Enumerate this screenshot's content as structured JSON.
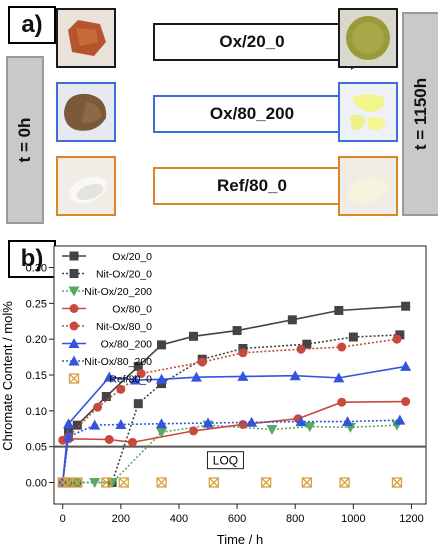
{
  "panel_a": {
    "label": "a)",
    "start_label": "t = 0h",
    "end_label": "t = 1150h",
    "rows": [
      {
        "condition": "Ox/20_0",
        "border": "#1a1a1a"
      },
      {
        "condition": "Ox/80_200",
        "border": "#3a6fd8"
      },
      {
        "condition": "Ref/80_0",
        "border": "#d8862a"
      }
    ]
  },
  "panel_b_label": "b)",
  "chart_data": {
    "type": "line",
    "xlabel": "Time / h",
    "ylabel": "Chromate Content / mol%",
    "xlim": [
      -30,
      1250
    ],
    "ylim": [
      -0.03,
      0.33
    ],
    "xticks": [
      0,
      200,
      400,
      600,
      800,
      1000,
      1200
    ],
    "yticks": [
      0.0,
      0.05,
      0.1,
      0.15,
      0.2,
      0.25,
      0.3
    ],
    "loq": {
      "value": 0.05,
      "label": "LOQ"
    },
    "grid": false,
    "legend": "top-left",
    "series": [
      {
        "name": "Ox/20_0",
        "color": "#444444",
        "marker": "square",
        "dash": "solid",
        "x": [
          0,
          20,
          50,
          150,
          260,
          340,
          450,
          600,
          790,
          950,
          1180
        ],
        "y": [
          0.0,
          0.07,
          0.08,
          0.12,
          0.162,
          0.192,
          0.204,
          0.212,
          0.227,
          0.24,
          0.246
        ]
      },
      {
        "name": "Nit-Ox/20_0",
        "color": "#444444",
        "marker": "square",
        "dash": "dotted",
        "x": [
          0,
          20,
          50,
          170,
          260,
          340,
          480,
          620,
          840,
          1000,
          1160
        ],
        "y": [
          0.0,
          0.0,
          0.0,
          0.0,
          0.11,
          0.138,
          0.172,
          0.187,
          0.193,
          0.203,
          0.206
        ]
      },
      {
        "name": "Nit-Ox/20_200",
        "color": "#55aa66",
        "marker": "triangle-down",
        "dash": "dotted",
        "x": [
          0,
          20,
          50,
          110,
          170,
          340,
          500,
          720,
          850,
          990,
          1150
        ],
        "y": [
          0.0,
          0.0,
          0.0,
          0.0,
          0.0,
          0.07,
          0.08,
          0.074,
          0.078,
          0.077,
          0.08
        ]
      },
      {
        "name": "Ox/80_0",
        "color": "#c84a3c",
        "marker": "circle",
        "dash": "solid",
        "x": [
          0,
          20,
          160,
          240,
          450,
          620,
          810,
          960,
          1180
        ],
        "y": [
          0.059,
          0.061,
          0.06,
          0.056,
          0.072,
          0.081,
          0.089,
          0.112,
          0.113
        ]
      },
      {
        "name": "Nit-Ox/80_0",
        "color": "#c84a3c",
        "marker": "circle",
        "dash": "dotted",
        "x": [
          0,
          20,
          120,
          200,
          270,
          480,
          620,
          820,
          960,
          1150
        ],
        "y": [
          0.0,
          0.064,
          0.105,
          0.13,
          0.152,
          0.168,
          0.181,
          0.186,
          0.189,
          0.2
        ]
      },
      {
        "name": "Ox/80_200",
        "color": "#3355dd",
        "marker": "triangle-up",
        "dash": "solid",
        "x": [
          0,
          20,
          160,
          250,
          340,
          460,
          620,
          800,
          950,
          1180
        ],
        "y": [
          0.0,
          0.082,
          0.147,
          0.143,
          0.144,
          0.147,
          0.148,
          0.149,
          0.146,
          0.162
        ]
      },
      {
        "name": "Nit-Ox/80_200",
        "color": "#3355dd",
        "marker": "triangle-up",
        "dash": "dotted",
        "x": [
          0,
          20,
          110,
          200,
          340,
          500,
          650,
          820,
          980,
          1160
        ],
        "y": [
          0.0,
          0.064,
          0.08,
          0.081,
          0.082,
          0.083,
          0.084,
          0.085,
          0.085,
          0.087
        ]
      },
      {
        "name": "Ref/80_0",
        "color": "#d8a040",
        "marker": "crossed-square",
        "dash": "none",
        "x": [
          0,
          20,
          50,
          150,
          210,
          340,
          520,
          700,
          840,
          970,
          1150
        ],
        "y": [
          0.0,
          0.0,
          0.0,
          0.0,
          0.0,
          0.0,
          0.0,
          0.0,
          0.0,
          0.0,
          0.0
        ]
      }
    ]
  }
}
